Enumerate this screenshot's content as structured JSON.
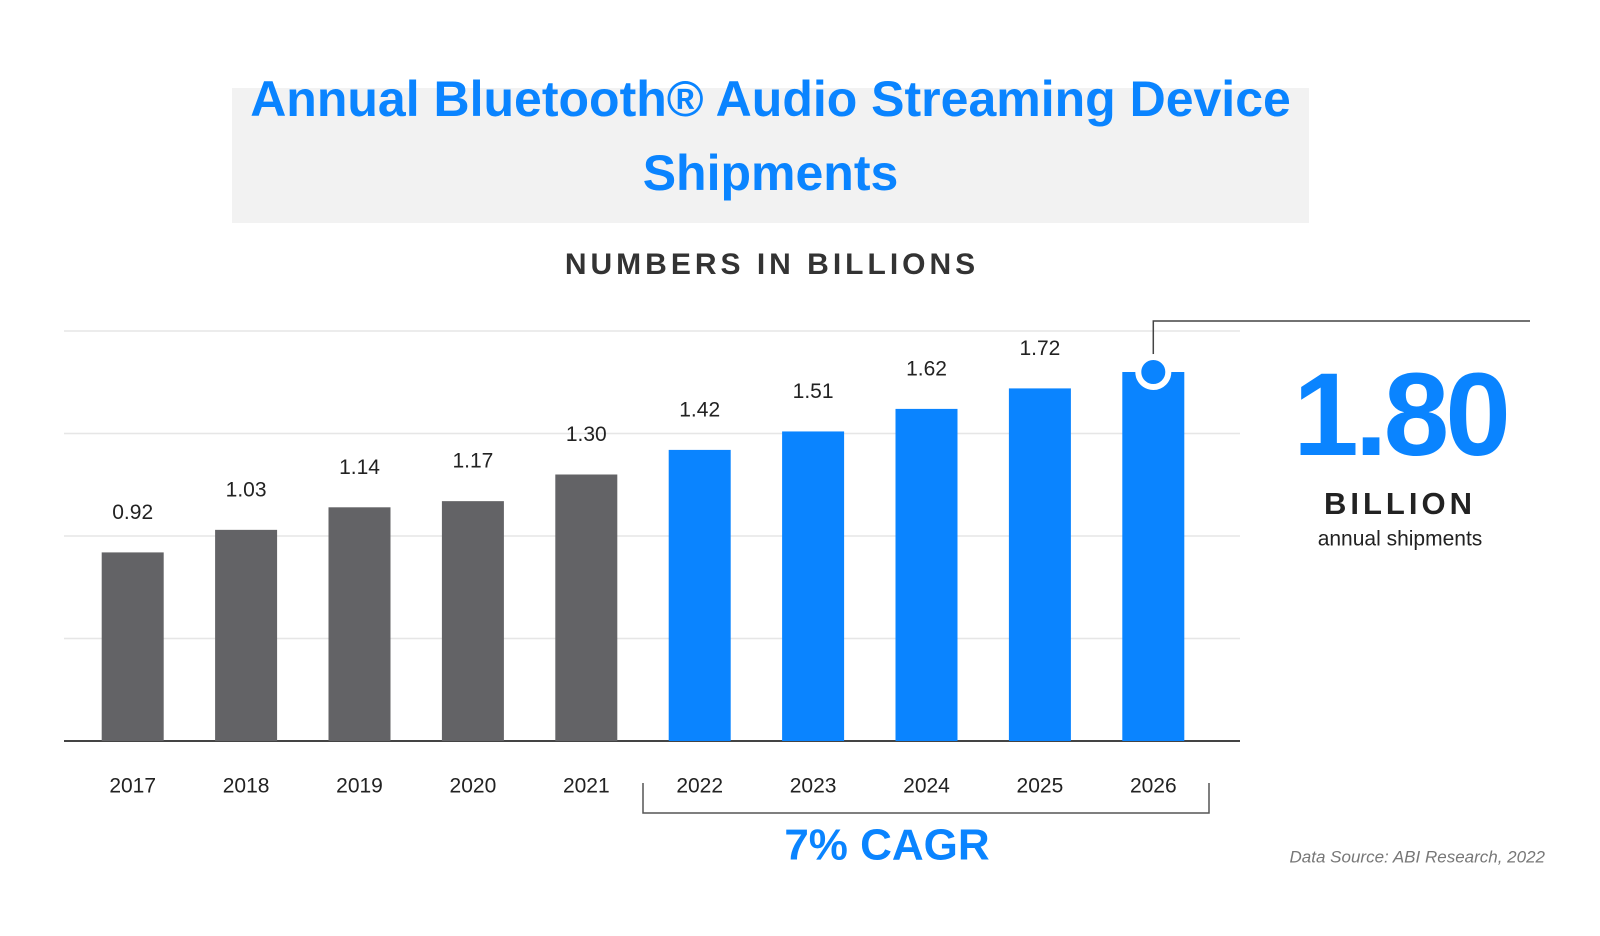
{
  "chart_data": {
    "type": "bar",
    "title": "Annual Bluetooth® Audio Streaming Device Shipments",
    "subtitle": "NUMBERS IN BILLIONS",
    "categories": [
      "2017",
      "2018",
      "2019",
      "2020",
      "2021",
      "2022",
      "2023",
      "2024",
      "2025",
      "2026"
    ],
    "values": [
      0.92,
      1.03,
      1.14,
      1.17,
      1.3,
      1.42,
      1.51,
      1.62,
      1.72,
      1.8
    ],
    "value_labels": [
      "0.92",
      "1.03",
      "1.14",
      "1.17",
      "1.30",
      "1.42",
      "1.51",
      "1.62",
      "1.72",
      "1.80"
    ],
    "colors": [
      "#636366",
      "#636366",
      "#636366",
      "#636366",
      "#636366",
      "#0a84ff",
      "#0a84ff",
      "#0a84ff",
      "#0a84ff",
      "#0a84ff"
    ],
    "ylim": [
      0,
      2
    ],
    "yticks": [
      0,
      0.5,
      1,
      1.5,
      2
    ],
    "grid": true,
    "callout_unit": "BILLION",
    "callout_text": "annual shipments",
    "annotation": "7% CAGR",
    "source": "Data Source: ABI Research, 2022"
  }
}
